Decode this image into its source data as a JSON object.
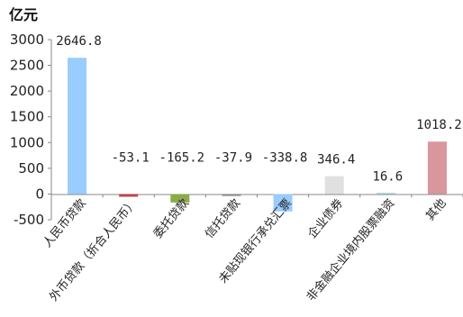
{
  "chart_data": {
    "type": "bar",
    "unit_label": "亿元",
    "categories": [
      "人民币贷款",
      "外币贷款（折合人民币）",
      "委托贷款",
      "信托贷款",
      "未贴现银行承兑汇票",
      "企业债券",
      "非金融企业境内股票融资",
      "其他"
    ],
    "values": [
      2646.8,
      -53.1,
      -165.2,
      -37.9,
      -338.8,
      346.4,
      16.6,
      1018.2
    ],
    "data_labels": [
      "2646.8",
      "-53.1",
      "-165.2",
      "-37.9",
      "-338.8",
      "346.4",
      "16.6",
      "1018.2"
    ],
    "colors": [
      "#99CCFF",
      "#B84A47",
      "#8BAA4C",
      "#8A8A8A",
      "#99CCFF",
      "#E0E0E0",
      "#B6DDE8",
      "#D9969B"
    ],
    "ylim": [
      -500,
      3000
    ],
    "yticks": [
      "-500",
      "0",
      "500",
      "1000",
      "1500",
      "2000",
      "2500",
      "3000"
    ],
    "ytick_values": [
      -500,
      0,
      500,
      1000,
      1500,
      2000,
      2500,
      3000
    ],
    "grid": false,
    "legend": "none"
  }
}
